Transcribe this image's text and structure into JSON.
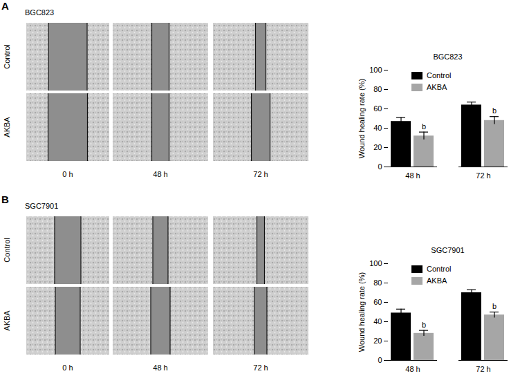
{
  "figure_panels": [
    {
      "label": "A",
      "cell_line": "BGC823",
      "row_labels": [
        "Control",
        "AKBA"
      ],
      "column_labels": [
        "0 h",
        "48 h",
        "72 h"
      ]
    },
    {
      "label": "B",
      "cell_line": "SGC7901",
      "row_labels": [
        "Control",
        "AKBA"
      ],
      "column_labels": [
        "0 h",
        "48 h",
        "72 h"
      ]
    }
  ],
  "chart_data": [
    {
      "type": "bar",
      "title": "BGC823",
      "y_label": "Wound healing rate (%)",
      "categories": [
        "48 h",
        "72 h"
      ],
      "series": [
        {
          "name": "Control",
          "color": "#000000",
          "values": [
            47,
            64
          ],
          "errors": [
            4,
            3
          ]
        },
        {
          "name": "AKBA",
          "color": "#a6a6a6",
          "values": [
            32,
            48
          ],
          "errors": [
            4,
            4
          ],
          "annotations": [
            "b",
            "b"
          ]
        }
      ],
      "ylim": [
        0,
        100
      ],
      "yticks": [
        0,
        20,
        40,
        60,
        80,
        100
      ],
      "grid": false,
      "legend": "top-left"
    },
    {
      "type": "bar",
      "title": "SGC7901",
      "y_label": "Wound healing rate (%)",
      "categories": [
        "48 h",
        "72 h"
      ],
      "series": [
        {
          "name": "Control",
          "color": "#000000",
          "values": [
            49,
            70
          ],
          "errors": [
            4,
            3
          ]
        },
        {
          "name": "AKBA",
          "color": "#a6a6a6",
          "values": [
            28,
            47
          ],
          "errors": [
            3,
            3
          ],
          "annotations": [
            "b",
            "b"
          ]
        }
      ],
      "ylim": [
        0,
        100
      ],
      "yticks": [
        0,
        20,
        40,
        60,
        80,
        100
      ],
      "grid": false,
      "legend": "top-left"
    }
  ]
}
